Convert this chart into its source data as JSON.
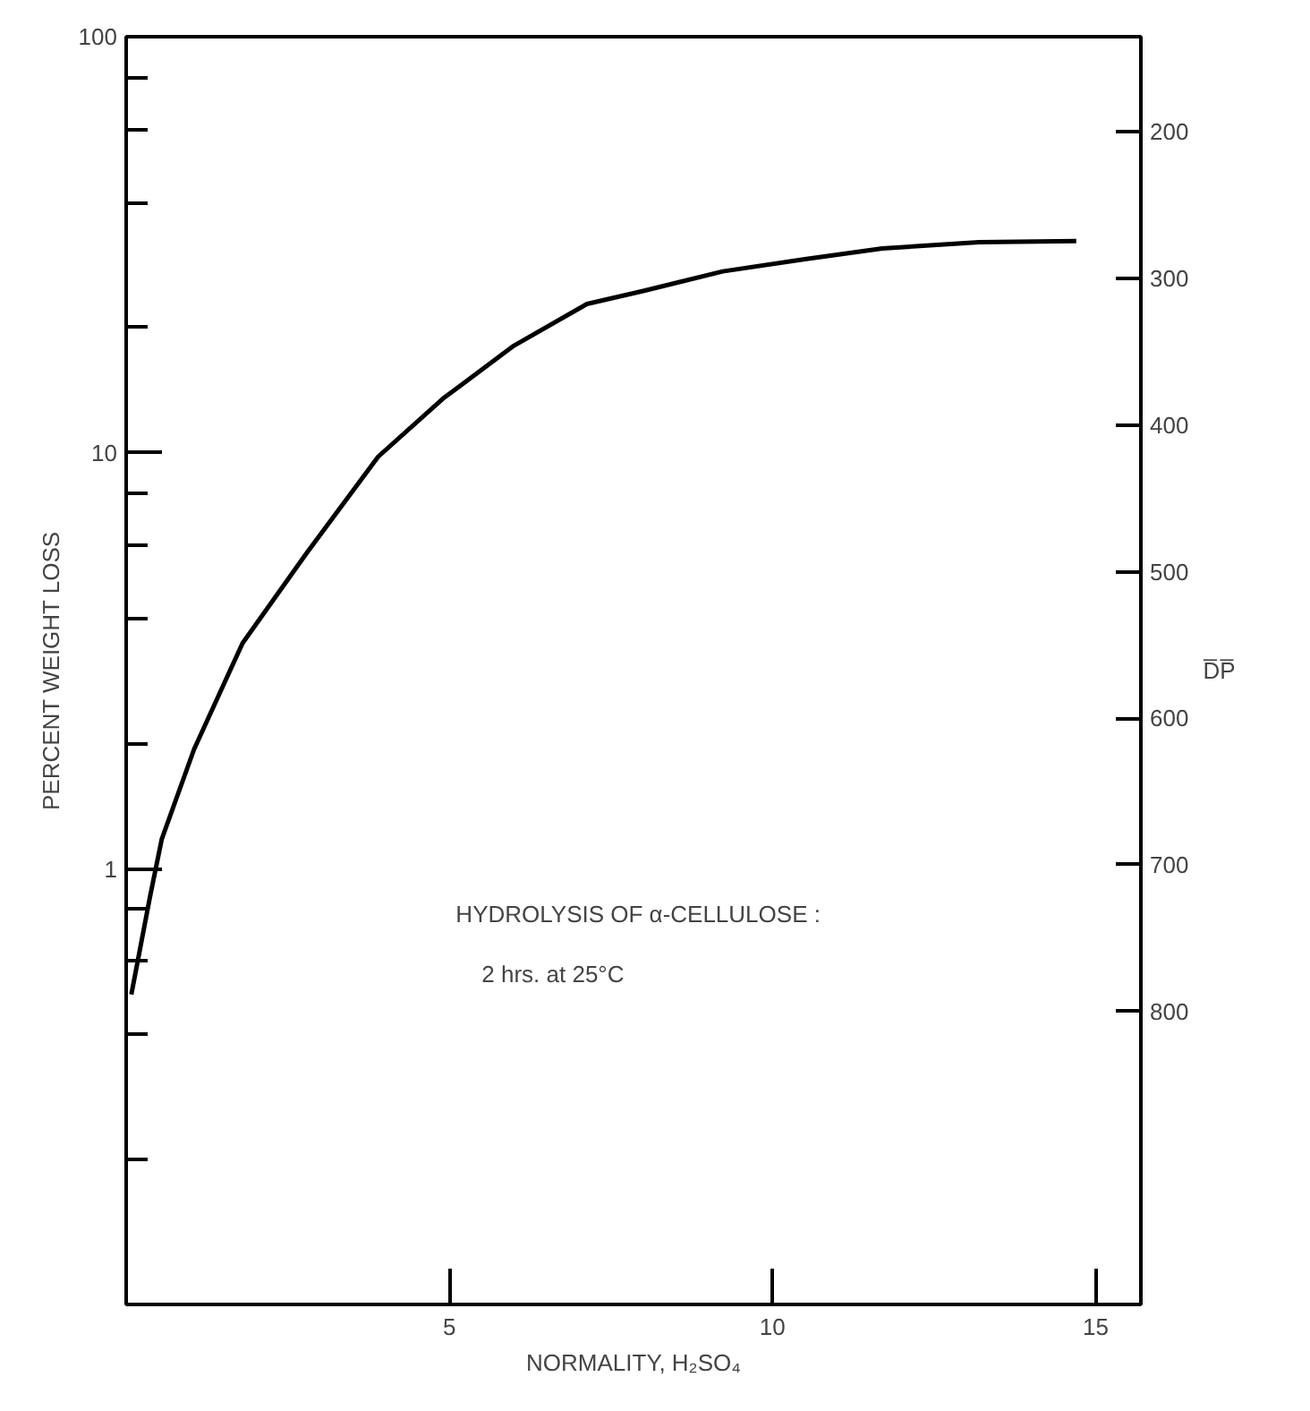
{
  "chart_data": {
    "type": "line",
    "xlabel": "NORMALITY, H₂SO₄",
    "ylabel": "PERCENT WEIGHT LOSS",
    "y2label": "D̅P̅",
    "annotations": [
      "HYDROLYSIS OF α-CELLULOSE :",
      "2 hrs. at 25°C"
    ],
    "log": "y",
    "grid": false,
    "marker": "none",
    "line_style": "solid",
    "xlim": [
      0,
      15.7
    ],
    "xticks": [
      5,
      10,
      15
    ],
    "ylim": [
      0.09,
      100
    ],
    "yticks": [
      {
        "value": 0.2,
        "label": null
      },
      {
        "value": 0.4,
        "label": null
      },
      {
        "value": 0.6,
        "label": null
      },
      {
        "value": 0.8,
        "label": null
      },
      1,
      {
        "value": 2,
        "label": null
      },
      {
        "value": 4,
        "label": null
      },
      {
        "value": 6,
        "label": null
      },
      {
        "value": 8,
        "label": null
      },
      10,
      {
        "value": 20,
        "label": null
      },
      {
        "value": 40,
        "label": null
      },
      {
        "value": 60,
        "label": null
      },
      {
        "value": 80,
        "label": null
      },
      100
    ],
    "y2lim": [
      1000,
      135
    ],
    "y2ticks": [
      200,
      300,
      400,
      500,
      600,
      700,
      800
    ],
    "series": [
      {
        "color": "#000000",
        "x": [
          0.08,
          0.37,
          0.55,
          1.05,
          1.8,
          2.79,
          3.9,
          4.9,
          6.0,
          7.13,
          8.0,
          9.23,
          10.5,
          11.7,
          13.2,
          14.7
        ],
        "values": [
          0.5,
          0.86,
          1.18,
          1.94,
          3.49,
          5.74,
          9.8,
          13.5,
          18.1,
          22.8,
          24.5,
          27.3,
          29.2,
          31.0,
          32.1,
          32.3
        ]
      }
    ]
  }
}
